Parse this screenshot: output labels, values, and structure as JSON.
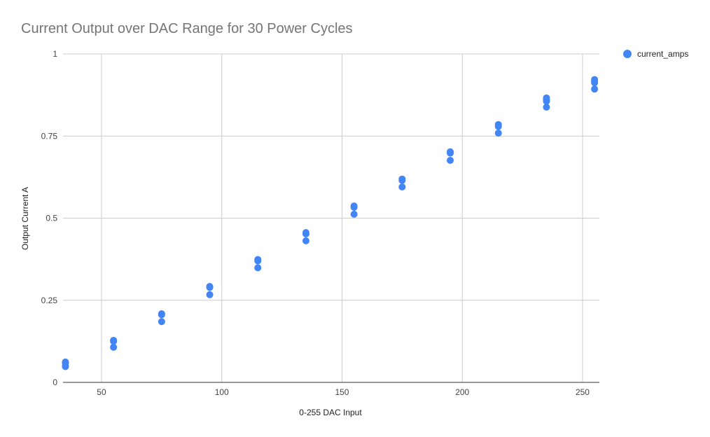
{
  "chart_data": {
    "type": "scatter",
    "title": "Current Output over DAC Range for 30 Power Cycles",
    "xlabel": "0-255 DAC Input",
    "ylabel": "Output Current A",
    "xlim": [
      34,
      257
    ],
    "ylim": [
      0,
      1
    ],
    "x_ticks": [
      50,
      100,
      150,
      200,
      250
    ],
    "x_tick_labels": [
      "50",
      "100",
      "150",
      "200",
      "250"
    ],
    "y_ticks": [
      0,
      0.25,
      0.5,
      0.75,
      1
    ],
    "y_tick_labels": [
      "0",
      "0.25",
      "0.5",
      "0.75",
      "1"
    ],
    "grid": true,
    "legend_position": "right",
    "series": [
      {
        "name": "current_amps",
        "color": "#4285f4",
        "points": [
          [
            35,
            0.062
          ],
          [
            35,
            0.059
          ],
          [
            35,
            0.05
          ],
          [
            35,
            0.048
          ],
          [
            55,
            0.128
          ],
          [
            55,
            0.125
          ],
          [
            55,
            0.107
          ],
          [
            75,
            0.209
          ],
          [
            75,
            0.206
          ],
          [
            75,
            0.185
          ],
          [
            95,
            0.292
          ],
          [
            95,
            0.289
          ],
          [
            95,
            0.267
          ],
          [
            115,
            0.374
          ],
          [
            115,
            0.37
          ],
          [
            115,
            0.349
          ],
          [
            135,
            0.456
          ],
          [
            135,
            0.452
          ],
          [
            135,
            0.431
          ],
          [
            155,
            0.537
          ],
          [
            155,
            0.533
          ],
          [
            155,
            0.512
          ],
          [
            175,
            0.619
          ],
          [
            175,
            0.615
          ],
          [
            175,
            0.595
          ],
          [
            195,
            0.702
          ],
          [
            195,
            0.698
          ],
          [
            195,
            0.676
          ],
          [
            215,
            0.785
          ],
          [
            215,
            0.779
          ],
          [
            215,
            0.759
          ],
          [
            235,
            0.866
          ],
          [
            235,
            0.861
          ],
          [
            235,
            0.856
          ],
          [
            235,
            0.838
          ],
          [
            255,
            0.922
          ],
          [
            255,
            0.917
          ],
          [
            255,
            0.912
          ],
          [
            255,
            0.893
          ]
        ]
      }
    ]
  }
}
